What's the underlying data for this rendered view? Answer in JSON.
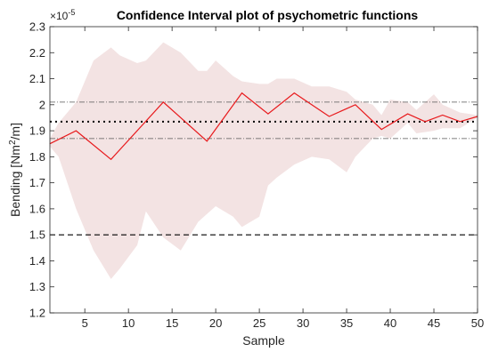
{
  "chart_data": {
    "type": "line",
    "title": "Confidence Interval plot of psychometric functions",
    "xlabel": "Sample",
    "ylabel_parts": {
      "base": "Bending [Nm",
      "sup": "2",
      "tail": "/m]"
    },
    "y_exponent": {
      "base": "×10",
      "sup": "-5"
    },
    "xlim": [
      1,
      50
    ],
    "ylim": [
      1.2,
      2.3
    ],
    "x_ticks": [
      5,
      10,
      15,
      20,
      25,
      30,
      35,
      40,
      45,
      50
    ],
    "y_ticks": [
      1.2,
      1.3,
      1.4,
      1.5,
      1.6,
      1.7,
      1.8,
      1.9,
      2.0,
      2.1,
      2.2,
      2.3
    ],
    "y_tick_labels": [
      "1.2",
      "1.3",
      "1.4",
      "1.5",
      "1.6",
      "1.7",
      "1.8",
      "1.9",
      "2",
      "2.1",
      "2.2",
      "2.3"
    ],
    "series": [
      {
        "style": "line",
        "color": "#e8191c",
        "x": [
          1,
          4,
          8,
          14,
          19,
          23,
          26,
          29,
          33,
          36,
          39,
          42,
          44,
          46,
          48,
          50
        ],
        "y": [
          1.85,
          1.9,
          1.79,
          2.01,
          1.86,
          2.045,
          1.965,
          2.045,
          1.955,
          2.0,
          1.905,
          1.965,
          1.935,
          1.96,
          1.935,
          1.955
        ]
      }
    ],
    "confidence_band": {
      "color": "#f3e3e3",
      "x": [
        1,
        2,
        4,
        6,
        8,
        9,
        11,
        12,
        14,
        16,
        18,
        19,
        20,
        22,
        23,
        25,
        26,
        27,
        29,
        31,
        33,
        35,
        36,
        38,
        39,
        40,
        42,
        43,
        45,
        46,
        48,
        50
      ],
      "upper": [
        1.87,
        1.93,
        2.01,
        2.17,
        2.22,
        2.19,
        2.16,
        2.17,
        2.24,
        2.2,
        2.13,
        2.13,
        2.17,
        2.11,
        2.09,
        2.08,
        2.08,
        2.1,
        2.1,
        2.07,
        2.07,
        2.05,
        2.02,
        2.0,
        1.96,
        2.02,
        2.01,
        1.98,
        2.04,
        2.0,
        1.97,
        1.96
      ],
      "lower": [
        1.84,
        1.8,
        1.6,
        1.44,
        1.33,
        1.37,
        1.46,
        1.59,
        1.49,
        1.44,
        1.55,
        1.58,
        1.61,
        1.57,
        1.53,
        1.57,
        1.69,
        1.72,
        1.77,
        1.8,
        1.79,
        1.74,
        1.8,
        1.87,
        1.88,
        1.87,
        1.93,
        1.89,
        1.9,
        1.91,
        1.91,
        1.95
      ]
    },
    "reference_lines": [
      {
        "label_style": "dash-dot",
        "y": 2.01,
        "color": "#555555"
      },
      {
        "label_style": "dotted",
        "y": 1.935,
        "color": "#000000"
      },
      {
        "label_style": "dash-dot",
        "y": 1.87,
        "color": "#555555"
      },
      {
        "label_style": "dashed",
        "y": 1.5,
        "color": "#000000"
      }
    ],
    "grid": false
  }
}
